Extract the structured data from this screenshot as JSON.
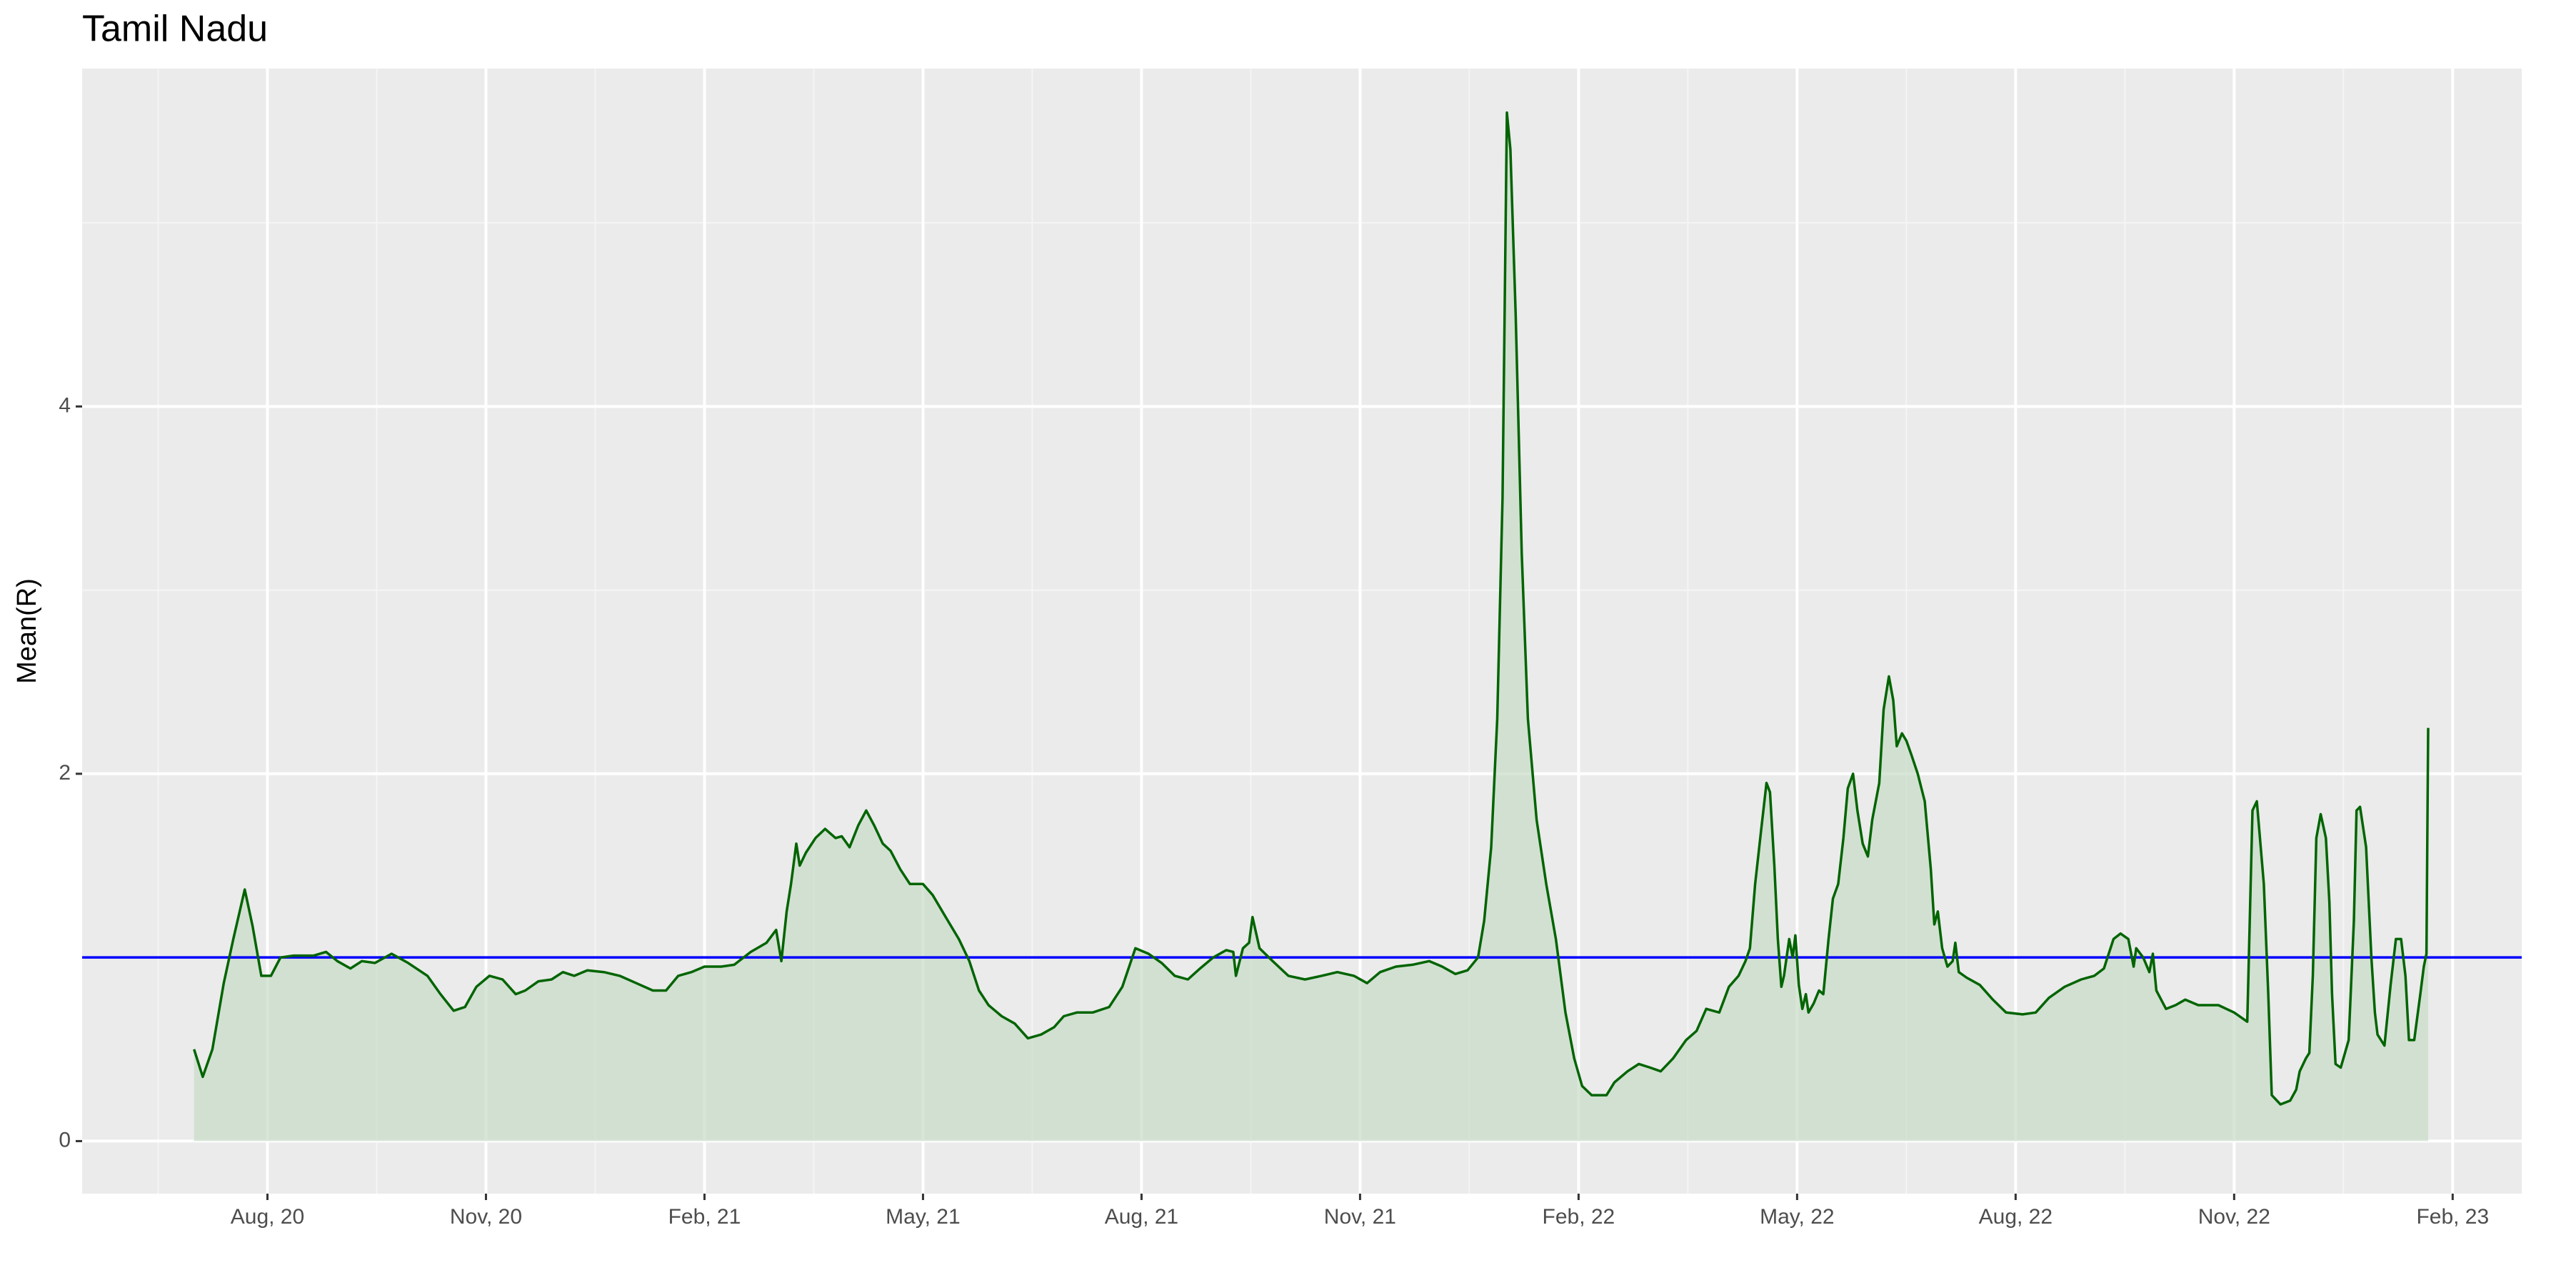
{
  "chart_data": {
    "type": "area-line",
    "title": "Tamil Nadu",
    "y_label": "Mean(R)",
    "x": [
      2020.499,
      2020.509,
      2020.52,
      2020.533,
      2020.544,
      2020.557,
      2020.566,
      2020.576,
      2020.587,
      2020.598,
      2020.613,
      2020.636,
      2020.65,
      2020.663,
      2020.678,
      2020.691,
      2020.706,
      2020.725,
      2020.744,
      2020.766,
      2020.781,
      2020.796,
      2020.809,
      2020.822,
      2020.837,
      2020.852,
      2020.867,
      2020.878,
      2020.893,
      2020.908,
      2020.921,
      2020.934,
      2020.949,
      2020.968,
      2020.986,
      2021.005,
      2021.024,
      2021.039,
      2021.053,
      2021.068,
      2021.083,
      2021.102,
      2021.117,
      2021.136,
      2021.154,
      2021.165,
      2021.171,
      2021.177,
      2021.182,
      2021.188,
      2021.192,
      2021.199,
      2021.21,
      2021.221,
      2021.233,
      2021.24,
      2021.249,
      2021.259,
      2021.268,
      2021.277,
      2021.287,
      2021.296,
      2021.307,
      2021.318,
      2021.333,
      2021.344,
      2021.359,
      2021.374,
      2021.386,
      2021.397,
      2021.408,
      2021.423,
      2021.438,
      2021.453,
      2021.468,
      2021.483,
      2021.494,
      2021.509,
      2021.527,
      2021.546,
      2021.561,
      2021.576,
      2021.591,
      2021.606,
      2021.621,
      2021.636,
      2021.65,
      2021.665,
      2021.68,
      2021.688,
      2021.691,
      2021.699,
      2021.706,
      2021.71,
      2021.718,
      2021.733,
      2021.751,
      2021.77,
      2021.789,
      2021.807,
      2021.826,
      2021.841,
      2021.856,
      2021.874,
      2021.893,
      2021.912,
      2021.927,
      2021.942,
      2021.956,
      2021.968,
      2021.975,
      2021.983,
      2021.99,
      2021.996,
      2022.001,
      2022.005,
      2022.011,
      2022.018,
      2022.025,
      2022.035,
      2022.046,
      2022.057,
      2022.068,
      2022.078,
      2022.087,
      2022.098,
      2022.115,
      2022.124,
      2022.139,
      2022.152,
      2022.165,
      2022.177,
      2022.191,
      2022.206,
      2022.218,
      2022.229,
      2022.244,
      2022.255,
      2022.266,
      2022.274,
      2022.279,
      2022.285,
      2022.292,
      2022.298,
      2022.302,
      2022.307,
      2022.311,
      2022.315,
      2022.318,
      2022.324,
      2022.328,
      2022.331,
      2022.335,
      2022.339,
      2022.343,
      2022.346,
      2022.352,
      2022.358,
      2022.363,
      2022.369,
      2022.374,
      2022.38,
      2022.386,
      2022.391,
      2022.397,
      2022.402,
      2022.408,
      2022.414,
      2022.419,
      2022.427,
      2022.432,
      2022.438,
      2022.443,
      2022.447,
      2022.453,
      2022.458,
      2022.464,
      2022.471,
      2022.479,
      2022.486,
      2022.49,
      2022.494,
      2022.499,
      2022.505,
      2022.511,
      2022.514,
      2022.518,
      2022.527,
      2022.542,
      2022.557,
      2022.572,
      2022.591,
      2022.606,
      2022.621,
      2022.639,
      2022.658,
      2022.673,
      2022.684,
      2022.695,
      2022.703,
      2022.712,
      2022.718,
      2022.721,
      2022.729,
      2022.736,
      2022.74,
      2022.744,
      2022.755,
      2022.766,
      2022.777,
      2022.792,
      2022.815,
      2022.833,
      2022.848,
      2022.854,
      2022.859,
      2022.867,
      2022.872,
      2022.876,
      2022.886,
      2022.897,
      2022.904,
      2022.908,
      2022.915,
      2022.919,
      2022.923,
      2022.927,
      2022.932,
      2022.938,
      2022.942,
      2022.945,
      2022.949,
      2022.955,
      2022.964,
      2022.97,
      2022.973,
      2022.977,
      2022.984,
      2022.99,
      2022.994,
      2022.997,
      2023.005,
      2023.012,
      2023.018,
      2023.024,
      2023.029,
      2023.033,
      2023.039,
      2023.046,
      2023.05,
      2023.053,
      2023.055
    ],
    "values": [
      0.5,
      0.35,
      0.5,
      0.86,
      1.1,
      1.37,
      1.17,
      0.9,
      0.9,
      1.0,
      1.01,
      1.01,
      1.03,
      0.98,
      0.94,
      0.98,
      0.97,
      1.02,
      0.97,
      0.9,
      0.8,
      0.71,
      0.73,
      0.84,
      0.9,
      0.88,
      0.8,
      0.82,
      0.87,
      0.88,
      0.92,
      0.9,
      0.93,
      0.92,
      0.9,
      0.86,
      0.82,
      0.82,
      0.9,
      0.92,
      0.95,
      0.95,
      0.96,
      1.03,
      1.08,
      1.15,
      0.98,
      1.25,
      1.4,
      1.62,
      1.5,
      1.57,
      1.65,
      1.7,
      1.65,
      1.66,
      1.6,
      1.72,
      1.8,
      1.72,
      1.62,
      1.58,
      1.48,
      1.4,
      1.4,
      1.34,
      1.22,
      1.1,
      0.98,
      0.82,
      0.74,
      0.68,
      0.64,
      0.56,
      0.58,
      0.62,
      0.68,
      0.7,
      0.7,
      0.73,
      0.84,
      1.05,
      1.02,
      0.97,
      0.9,
      0.88,
      0.94,
      1.0,
      1.04,
      1.03,
      0.9,
      1.05,
      1.08,
      1.22,
      1.05,
      0.98,
      0.9,
      0.88,
      0.9,
      0.92,
      0.9,
      0.86,
      0.92,
      0.95,
      0.96,
      0.98,
      0.95,
      0.91,
      0.93,
      1.0,
      1.2,
      1.6,
      2.3,
      3.5,
      5.6,
      5.4,
      4.5,
      3.2,
      2.3,
      1.75,
      1.4,
      1.1,
      0.7,
      0.45,
      0.3,
      0.25,
      0.25,
      0.32,
      0.38,
      0.42,
      0.4,
      0.38,
      0.45,
      0.55,
      0.6,
      0.72,
      0.7,
      0.84,
      0.9,
      0.98,
      1.05,
      1.4,
      1.7,
      1.95,
      1.9,
      1.5,
      1.1,
      0.84,
      0.9,
      1.1,
      1.0,
      1.12,
      0.85,
      0.72,
      0.8,
      0.7,
      0.75,
      0.82,
      0.8,
      1.1,
      1.32,
      1.4,
      1.65,
      1.92,
      2.0,
      1.8,
      1.62,
      1.55,
      1.75,
      1.95,
      2.35,
      2.53,
      2.4,
      2.15,
      2.22,
      2.18,
      2.1,
      2.0,
      1.85,
      1.48,
      1.18,
      1.25,
      1.05,
      0.95,
      0.98,
      1.08,
      0.92,
      0.89,
      0.85,
      0.77,
      0.7,
      0.69,
      0.7,
      0.78,
      0.84,
      0.88,
      0.9,
      0.94,
      1.1,
      1.13,
      1.1,
      0.95,
      1.05,
      1.0,
      0.92,
      1.02,
      0.82,
      0.72,
      0.74,
      0.77,
      0.74,
      0.74,
      0.7,
      0.65,
      1.8,
      1.85,
      1.4,
      0.8,
      0.25,
      0.2,
      0.22,
      0.28,
      0.38,
      0.45,
      0.48,
      0.9,
      1.65,
      1.78,
      1.65,
      1.3,
      0.8,
      0.42,
      0.4,
      0.55,
      1.2,
      1.8,
      1.82,
      1.6,
      1.0,
      0.7,
      0.58,
      0.52,
      0.85,
      1.1,
      1.1,
      0.9,
      0.55,
      0.55,
      0.8,
      0.95,
      1.02,
      2.25
    ],
    "color": "#006400",
    "fill_color": "#c8dcc8",
    "reference_line": {
      "value": 1,
      "color": "#0000ff"
    },
    "xlim": [
      2020.371,
      2023.162
    ],
    "xticks": [
      {
        "value": 2020.583,
        "label": "Aug, 20"
      },
      {
        "value": 2020.833,
        "label": "Nov, 20"
      },
      {
        "value": 2021.083,
        "label": "Feb, 21"
      },
      {
        "value": 2021.333,
        "label": "May, 21"
      },
      {
        "value": 2021.583,
        "label": "Aug, 21"
      },
      {
        "value": 2021.833,
        "label": "Nov, 21"
      },
      {
        "value": 2022.083,
        "label": "Feb, 22"
      },
      {
        "value": 2022.333,
        "label": "May, 22"
      },
      {
        "value": 2022.583,
        "label": "Aug, 22"
      },
      {
        "value": 2022.833,
        "label": "Nov, 22"
      },
      {
        "value": 2023.083,
        "label": "Feb, 23"
      }
    ],
    "x_minor_ticks": [
      2020.458,
      2020.708,
      2020.958,
      2021.208,
      2021.458,
      2021.708,
      2021.958,
      2022.208,
      2022.458,
      2022.708,
      2022.958
    ],
    "ylim": [
      -0.286,
      5.84
    ],
    "yticks": [
      0,
      2,
      4
    ],
    "y_minor_ticks": [
      1,
      3,
      5
    ],
    "grid": true
  }
}
